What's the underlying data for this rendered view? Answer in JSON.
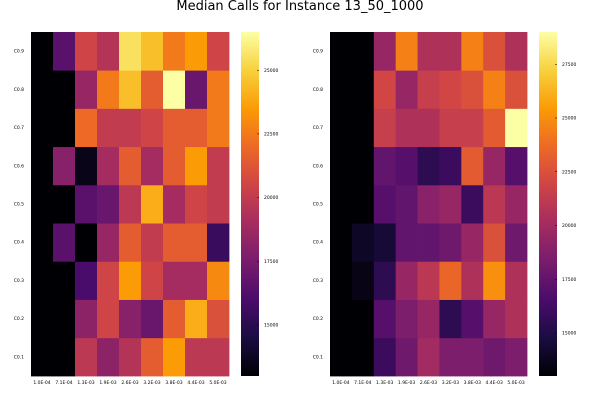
{
  "title": "Median Calls for Instance 13_50_1000",
  "colormap": [
    "#000004",
    "#1b0c41",
    "#4a0c6b",
    "#781c6d",
    "#a52c60",
    "#cf4446",
    "#ed6925",
    "#fb9b06",
    "#f7d13d",
    "#fcffa4"
  ],
  "chart_data": [
    {
      "type": "heatmap",
      "x_categories": [
        "1.0E-04",
        "7.1E-04",
        "1.3E-03",
        "1.9E-03",
        "2.6E-03",
        "3.2E-03",
        "3.8E-03",
        "4.4E-03",
        "5.0E-03"
      ],
      "y_categories": [
        "C0.1",
        "C0.2",
        "C0.3",
        "C0.4",
        "C0.5",
        "C0.6",
        "C0.7",
        "C0.8",
        "C0.9"
      ],
      "values": [
        [
          13000,
          13000,
          19800,
          18200,
          19500,
          21500,
          23500,
          19800,
          19800
        ],
        [
          13000,
          13000,
          18200,
          20500,
          18000,
          17000,
          21500,
          24000,
          21000
        ],
        [
          13000,
          13000,
          16000,
          20500,
          23500,
          20500,
          19000,
          19000,
          23000
        ],
        [
          13000,
          16500,
          13000,
          18500,
          21500,
          20000,
          21500,
          21500,
          15500
        ],
        [
          13000,
          13000,
          16500,
          17000,
          19800,
          24000,
          19000,
          20500,
          20000
        ],
        [
          13000,
          18000,
          13500,
          19000,
          21500,
          19000,
          21500,
          23500,
          20000
        ],
        [
          13000,
          13000,
          22000,
          20000,
          20000,
          20500,
          21500,
          21500,
          22500
        ],
        [
          13000,
          13000,
          18500,
          22500,
          24500,
          21500,
          26500,
          17000,
          22500
        ],
        [
          13000,
          16500,
          20500,
          19500,
          25500,
          24500,
          22500,
          23500,
          20500
        ]
      ],
      "colorbar_ticks": [
        15000,
        17500,
        20000,
        22500,
        25000
      ],
      "zlim": [
        13000,
        26500
      ]
    },
    {
      "type": "heatmap",
      "x_categories": [
        "1.0E-04",
        "7.1E-04",
        "1.3E-03",
        "1.9E-03",
        "2.6E-03",
        "3.2E-03",
        "3.8E-03",
        "4.4E-03",
        "5.0E-03"
      ],
      "y_categories": [
        "C0.1",
        "C0.2",
        "C0.3",
        "C0.4",
        "C0.5",
        "C0.6",
        "C0.7",
        "C0.8",
        "C0.9"
      ],
      "values": [
        [
          13000,
          13000,
          16000,
          18000,
          20000,
          18500,
          18500,
          18000,
          18500
        ],
        [
          13000,
          13000,
          17000,
          18500,
          19500,
          15500,
          17000,
          19500,
          20500
        ],
        [
          13000,
          13500,
          15500,
          19500,
          21000,
          23500,
          20500,
          25000,
          20500
        ],
        [
          13000,
          14000,
          14500,
          17500,
          17500,
          18000,
          19500,
          22500,
          18000
        ],
        [
          13000,
          13000,
          17000,
          17500,
          19000,
          19500,
          16000,
          21000,
          19500
        ],
        [
          13000,
          13000,
          17500,
          17000,
          15500,
          16000,
          23000,
          19500,
          17000
        ],
        [
          13000,
          13000,
          21500,
          20500,
          20500,
          21500,
          21500,
          23000,
          29000
        ],
        [
          13000,
          13000,
          22000,
          19500,
          21500,
          22000,
          22500,
          24500,
          22500
        ],
        [
          13000,
          13000,
          19500,
          24500,
          20500,
          20500,
          24500,
          22500,
          20500
        ]
      ],
      "colorbar_ticks": [
        15000,
        17500,
        20000,
        22500,
        25000,
        27500
      ],
      "zlim": [
        13000,
        29000
      ]
    }
  ]
}
